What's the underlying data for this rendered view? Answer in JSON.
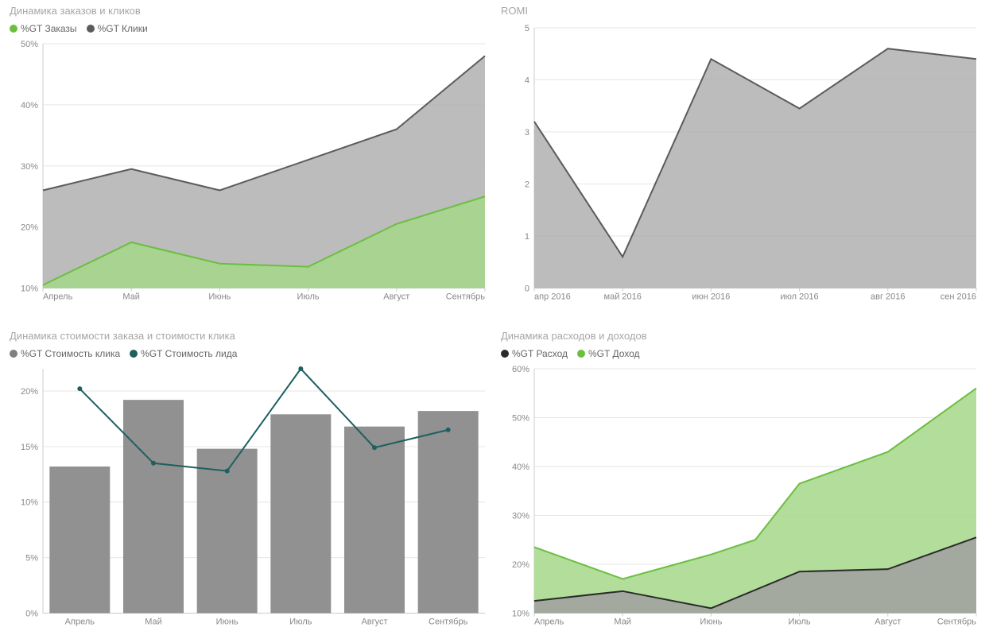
{
  "colors": {
    "green_fill": "#a6d78a",
    "green_stroke": "#6bbf3f",
    "gray_fill": "#b0b0b0",
    "gray_stroke": "#5b5b5b",
    "teal_stroke": "#1f5f5f",
    "black_stroke": "#2b2b2b",
    "black_fill": "#808080",
    "grid": "#e6e6e6",
    "axis": "#cccccc",
    "tick_text": "#888888",
    "title_text": "#a6a6a6",
    "legend_text": "#666666",
    "bg": "#ffffff"
  },
  "panel1": {
    "title": "Динамика заказов и кликов",
    "type": "area",
    "legend": [
      {
        "label": "%GT Заказы",
        "color": "#6bbf3f"
      },
      {
        "label": "%GT Клики",
        "color": "#5b5b5b"
      }
    ],
    "x_categories": [
      "Апрель",
      "Май",
      "Июнь",
      "Июль",
      "Август",
      "Сентябрь"
    ],
    "y_ticks": [
      10,
      20,
      30,
      40,
      50
    ],
    "y_tick_format": "pct",
    "ylim": [
      10,
      50
    ],
    "series": [
      {
        "name": "clicks",
        "values": [
          26,
          29.5,
          26,
          31,
          36,
          48
        ],
        "fill": "#b0b0b0",
        "stroke": "#5b5b5b"
      },
      {
        "name": "orders",
        "values": [
          10.5,
          17.5,
          14,
          13.5,
          20.5,
          25
        ],
        "fill": "#a6d78a",
        "stroke": "#6bbf3f"
      }
    ]
  },
  "panel2": {
    "title": "ROMI",
    "type": "area",
    "x_categories": [
      "апр 2016",
      "май 2016",
      "июн 2016",
      "июл 2016",
      "авг 2016",
      "сен 2016"
    ],
    "y_ticks": [
      0,
      1,
      2,
      3,
      4,
      5
    ],
    "y_tick_format": "num",
    "ylim": [
      0,
      5
    ],
    "series": [
      {
        "name": "romi",
        "values": [
          3.2,
          0.6,
          4.4,
          3.45,
          4.6,
          4.4
        ],
        "fill": "#b0b0b0",
        "stroke": "#5b5b5b"
      }
    ]
  },
  "panel3": {
    "title": "Динамика стоимости заказа и стоимости клика",
    "type": "bar_line",
    "legend": [
      {
        "label": "%GT Стоимость клика",
        "color": "#808080"
      },
      {
        "label": "%GT Стоимость лида",
        "color": "#1f5f5f"
      }
    ],
    "x_categories": [
      "Апрель",
      "Май",
      "Июнь",
      "Июль",
      "Август",
      "Сентябрь"
    ],
    "y_ticks": [
      0,
      5,
      10,
      15,
      20
    ],
    "y_tick_format": "pct",
    "ylim": [
      0,
      22
    ],
    "bars": {
      "values": [
        13.2,
        19.2,
        14.8,
        17.9,
        16.8,
        18.2
      ],
      "fill": "#919191"
    },
    "line": {
      "values": [
        20.2,
        13.5,
        12.8,
        22,
        14.9,
        16.5
      ],
      "stroke": "#1f5f5f"
    }
  },
  "panel4": {
    "title": "Динамика расходов и доходов",
    "type": "area",
    "legend": [
      {
        "label": "%GT Расход",
        "color": "#2b2b2b"
      },
      {
        "label": "%GT Доход",
        "color": "#6bbf3f"
      }
    ],
    "x_categories": [
      "Апрель",
      "Май",
      "Июнь",
      "Июль",
      "Август",
      "Сентябрь"
    ],
    "y_ticks": [
      10,
      20,
      30,
      40,
      50,
      60
    ],
    "y_tick_format": "pct",
    "ylim": [
      10,
      60
    ],
    "series": [
      {
        "name": "income",
        "values": [
          23.5,
          17,
          22,
          25,
          36.5,
          43,
          56
        ],
        "x_offsets": [
          0,
          1,
          2,
          2.5,
          3,
          4,
          5
        ],
        "fill": "#a6d78a",
        "stroke": "#6bbf3f"
      },
      {
        "name": "expense",
        "values": [
          12.5,
          14.5,
          11,
          18.5,
          19,
          25.5
        ],
        "fill": "#a0a0a0",
        "stroke": "#2b2b2b"
      }
    ]
  }
}
